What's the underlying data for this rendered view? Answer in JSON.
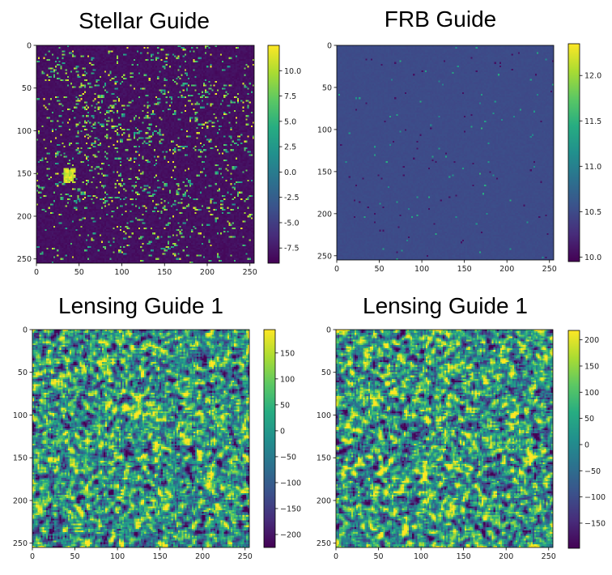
{
  "chart_data": [
    {
      "type": "heatmap",
      "title": "Stellar Guide",
      "xlim": [
        0,
        255
      ],
      "ylim": [
        0,
        255
      ],
      "xticks": [
        "0",
        "50",
        "100",
        "150",
        "200",
        "250"
      ],
      "yticks": [
        "0",
        "50",
        "100",
        "150",
        "200",
        "250"
      ],
      "colorbar": {
        "range": [
          -9,
          12.5
        ],
        "ticks": [
          "10.0",
          "7.5",
          "5.0",
          "2.5",
          "0.0",
          "-2.5",
          "-5.0",
          "-7.5"
        ]
      },
      "colormap": "viridis",
      "pattern": "sparse-bright"
    },
    {
      "type": "heatmap",
      "title": "FRB Guide",
      "xlim": [
        0,
        255
      ],
      "ylim": [
        0,
        255
      ],
      "xticks": [
        "0",
        "50",
        "100",
        "150",
        "200",
        "250"
      ],
      "yticks": [
        "0",
        "50",
        "100",
        "150",
        "200",
        "250"
      ],
      "colorbar": {
        "range": [
          9.95,
          12.35
        ],
        "ticks": [
          "12.0",
          "11.5",
          "11.0",
          "10.5",
          "10.0"
        ]
      },
      "colormap": "viridis",
      "pattern": "near-uniform"
    },
    {
      "type": "heatmap",
      "title": "Lensing Guide 1",
      "xlim": [
        0,
        255
      ],
      "ylim": [
        0,
        255
      ],
      "xticks": [
        "0",
        "50",
        "100",
        "150",
        "200",
        "250"
      ],
      "yticks": [
        "0",
        "50",
        "100",
        "150",
        "200",
        "250"
      ],
      "colorbar": {
        "range": [
          -225,
          195
        ],
        "ticks": [
          "150",
          "100",
          "50",
          "0",
          "−50",
          "−100",
          "−150",
          "−200"
        ]
      },
      "colormap": "viridis",
      "pattern": "noise"
    },
    {
      "type": "heatmap",
      "title": "Lensing Guide 1",
      "xlim": [
        0,
        255
      ],
      "ylim": [
        0,
        255
      ],
      "xticks": [
        "0",
        "50",
        "100",
        "150",
        "200",
        "250"
      ],
      "yticks": [
        "0",
        "50",
        "100",
        "150",
        "200",
        "250"
      ],
      "colorbar": {
        "range": [
          -198,
          218
        ],
        "ticks": [
          "200",
          "150",
          "100",
          "50",
          "0",
          "−50",
          "−100",
          "−150"
        ]
      },
      "colormap": "viridis",
      "pattern": "noise"
    }
  ]
}
